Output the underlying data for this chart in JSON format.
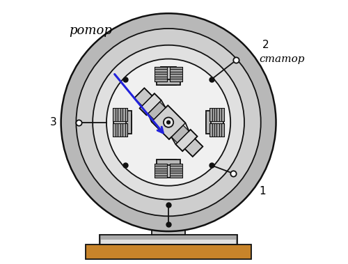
{
  "bg_color": "#ffffff",
  "label_rotor": "ротор",
  "label_stator": "статор",
  "label_1": "1",
  "label_2": "2",
  "label_3": "3",
  "arrow_color": "#2222dd",
  "line_color": "#111111",
  "wood_color": "#c8842a",
  "stator_outer": "#c0c0c0",
  "stator_mid": "#d2d2d2",
  "stator_inner_bg": "#e0e0e0",
  "rotor_light": "#d4d4d4",
  "rotor_dark": "#b8b8b8",
  "coil_fill": "#888888",
  "pole_fill": "#c8c8c8"
}
